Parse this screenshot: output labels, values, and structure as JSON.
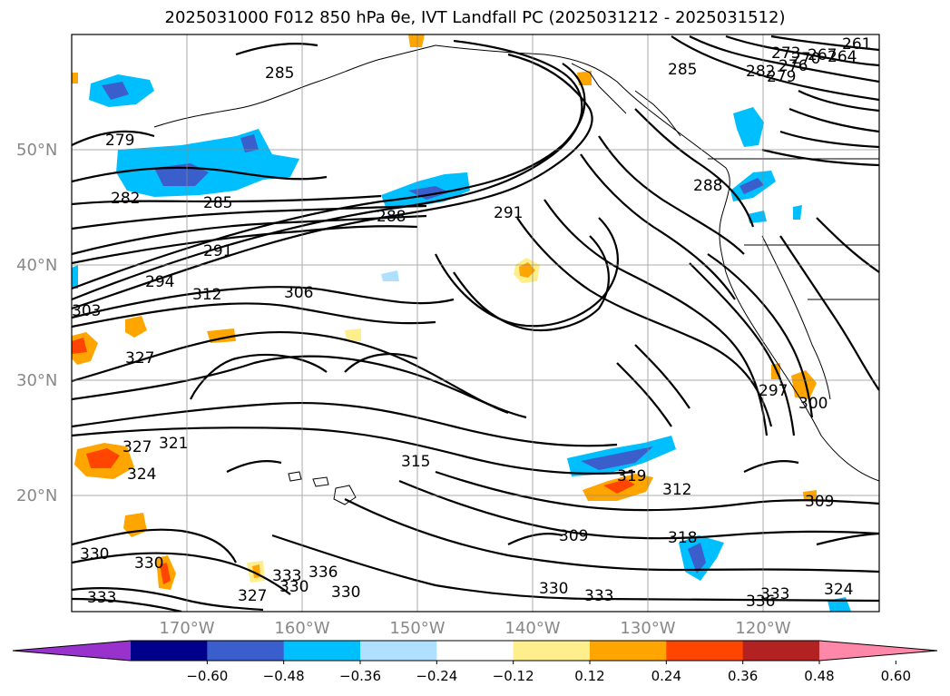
{
  "title": "2025031000 F012 850 hPa θe, IVT Landfall PC (2025031212 - 2025031512)",
  "lat_labels": [
    "50°N",
    "40°N",
    "30°N",
    "20°N"
  ],
  "lon_labels": [
    "170°W",
    "160°W",
    "150°W",
    "140°W",
    "130°W",
    "120°W"
  ],
  "colorbar": {
    "ticks": [
      "−0.60",
      "−0.48",
      "−0.36",
      "−0.24",
      "−0.12",
      "0.12",
      "0.24",
      "0.36",
      "0.48",
      "0.60"
    ],
    "colors": [
      "#9932cc",
      "#00008b",
      "#3a5fcd",
      "#00bfff",
      "#b0e0ff",
      "#ffffff",
      "#ffee8c",
      "#ffa500",
      "#ff4500",
      "#b22222",
      "#ff88aa"
    ]
  },
  "contour_labels": [
    "285",
    "279",
    "282",
    "285",
    "288",
    "291",
    "291",
    "294",
    "312",
    "306",
    "303",
    "327",
    "321",
    "324",
    "327",
    "315",
    "319",
    "312",
    "309",
    "297",
    "300",
    "309",
    "330",
    "330",
    "333",
    "327",
    "330",
    "333",
    "336",
    "330",
    "318",
    "330",
    "333",
    "336",
    "333",
    "324",
    "285",
    "282",
    "279",
    "276",
    "273",
    "270",
    "267",
    "264",
    "261",
    "288"
  ]
}
